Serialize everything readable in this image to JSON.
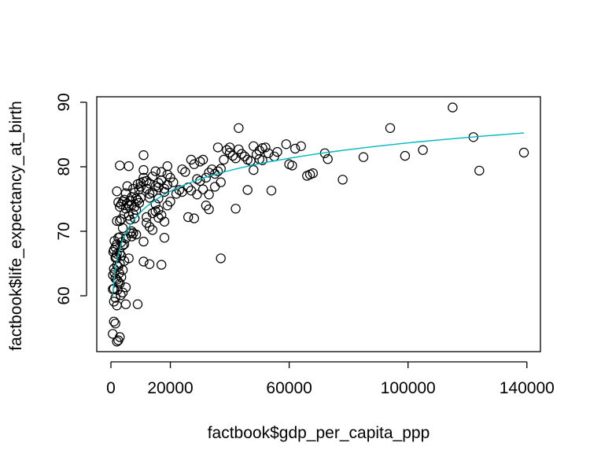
{
  "chart_data": {
    "type": "scatter",
    "title": "",
    "xlabel": "factbook$gdp_per_capita_ppp",
    "ylabel": "factbook$life_expectancy_at_birth",
    "xlim": [
      0,
      140000
    ],
    "ylim": [
      53,
      90
    ],
    "x_ticks": [
      0,
      20000,
      60000,
      100000,
      140000
    ],
    "x_tick_labels": [
      "0",
      "20000",
      "60000",
      "100000",
      "140000"
    ],
    "y_ticks": [
      60,
      70,
      80,
      90
    ],
    "y_tick_labels": [
      "60",
      "70",
      "80",
      "90"
    ],
    "grid": false,
    "legend": "none",
    "points_color": "#000000",
    "fit_color": "#00b7c3",
    "points": [
      [
        115000,
        89.2
      ],
      [
        94000,
        86.0
      ],
      [
        43000,
        86.0
      ],
      [
        122000,
        84.6
      ],
      [
        139000,
        82.2
      ],
      [
        105000,
        82.6
      ],
      [
        99000,
        81.7
      ],
      [
        85000,
        81.5
      ],
      [
        72000,
        82.1
      ],
      [
        73000,
        81.2
      ],
      [
        78000,
        78.0
      ],
      [
        124000,
        79.4
      ],
      [
        59000,
        83.5
      ],
      [
        62000,
        82.8
      ],
      [
        64000,
        83.2
      ],
      [
        60000,
        80.4
      ],
      [
        61000,
        80.2
      ],
      [
        66000,
        78.6
      ],
      [
        67000,
        78.8
      ],
      [
        68000,
        79.0
      ],
      [
        48000,
        83.2
      ],
      [
        50000,
        82.5
      ],
      [
        51000,
        82.9
      ],
      [
        52000,
        83.0
      ],
      [
        49000,
        81.9
      ],
      [
        50000,
        81.2
      ],
      [
        51000,
        81.0
      ],
      [
        53000,
        82.1
      ],
      [
        55000,
        81.6
      ],
      [
        56000,
        82.3
      ],
      [
        48000,
        79.5
      ],
      [
        54000,
        76.3
      ],
      [
        39000,
        82.6
      ],
      [
        40000,
        82.2
      ],
      [
        40000,
        83.0
      ],
      [
        41000,
        81.7
      ],
      [
        42000,
        81.3
      ],
      [
        43000,
        82.7
      ],
      [
        44000,
        82.0
      ],
      [
        45000,
        81.6
      ],
      [
        46000,
        81.1
      ],
      [
        47000,
        80.9
      ],
      [
        36000,
        83.0
      ],
      [
        38000,
        81.1
      ],
      [
        46000,
        76.4
      ],
      [
        42000,
        73.5
      ],
      [
        37000,
        65.8
      ],
      [
        30000,
        80.8
      ],
      [
        31000,
        81.1
      ],
      [
        32000,
        78.3
      ],
      [
        33000,
        79.1
      ],
      [
        34000,
        79.6
      ],
      [
        35000,
        78.9
      ],
      [
        36000,
        79.3
      ],
      [
        37000,
        79.7
      ],
      [
        37000,
        77.6
      ],
      [
        35000,
        76.9
      ],
      [
        33000,
        75.7
      ],
      [
        32000,
        74.0
      ],
      [
        33000,
        73.4
      ],
      [
        31000,
        76.5
      ],
      [
        28000,
        80.4
      ],
      [
        27000,
        81.1
      ],
      [
        29000,
        78.1
      ],
      [
        30000,
        77.8
      ],
      [
        29000,
        75.7
      ],
      [
        28000,
        72.0
      ],
      [
        27000,
        76.3
      ],
      [
        26000,
        76.8
      ],
      [
        25000,
        79.2
      ],
      [
        24000,
        79.6
      ],
      [
        26000,
        72.2
      ],
      [
        24000,
        76.1
      ],
      [
        23000,
        76.4
      ],
      [
        22000,
        75.8
      ],
      [
        21000,
        77.6
      ],
      [
        20000,
        78.3
      ],
      [
        19000,
        78.8
      ],
      [
        19000,
        77.2
      ],
      [
        18000,
        76.6
      ],
      [
        18000,
        76.1
      ],
      [
        17000,
        79.2
      ],
      [
        17000,
        77.9
      ],
      [
        16000,
        77.5
      ],
      [
        16000,
        76.8
      ],
      [
        16000,
        75.1
      ],
      [
        15000,
        79.3
      ],
      [
        15000,
        77.0
      ],
      [
        14000,
        78.5
      ],
      [
        14000,
        76.0
      ],
      [
        13000,
        77.4
      ],
      [
        13000,
        75.8
      ],
      [
        12000,
        77.8
      ],
      [
        12000,
        76.6
      ],
      [
        11000,
        79.5
      ],
      [
        11000,
        78.3
      ],
      [
        11000,
        77.7
      ],
      [
        19000,
        80.1
      ],
      [
        20000,
        74.6
      ],
      [
        19000,
        74.0
      ],
      [
        18000,
        71.5
      ],
      [
        18000,
        69.0
      ],
      [
        17000,
        72.5
      ],
      [
        17000,
        64.8
      ],
      [
        16000,
        73.3
      ],
      [
        16000,
        72.1
      ],
      [
        15000,
        74.2
      ],
      [
        15000,
        73.1
      ],
      [
        14000,
        72.8
      ],
      [
        14000,
        70.2
      ],
      [
        13000,
        75.2
      ],
      [
        13000,
        70.7
      ],
      [
        13000,
        64.9
      ],
      [
        12000,
        72.2
      ],
      [
        11000,
        81.8
      ],
      [
        12000,
        71.3
      ],
      [
        11000,
        68.4
      ],
      [
        11000,
        65.3
      ],
      [
        10000,
        77.5
      ],
      [
        10000,
        76.9
      ],
      [
        10000,
        75.2
      ],
      [
        9500,
        76.5
      ],
      [
        9500,
        74.4
      ],
      [
        9000,
        77.3
      ],
      [
        9000,
        74.8
      ],
      [
        8500,
        75.1
      ],
      [
        8500,
        73.3
      ],
      [
        8000,
        76.0
      ],
      [
        8000,
        73.8
      ],
      [
        8000,
        72.0
      ],
      [
        7500,
        76.6
      ],
      [
        7500,
        72.7
      ],
      [
        7000,
        75.3
      ],
      [
        7000,
        74.1
      ],
      [
        7000,
        70.0
      ],
      [
        7000,
        69.2
      ],
      [
        6500,
        74.7
      ],
      [
        6500,
        71.8
      ],
      [
        6500,
        69.7
      ],
      [
        6000,
        80.1
      ],
      [
        6000,
        74.0
      ],
      [
        6000,
        72.4
      ],
      [
        6000,
        65.8
      ],
      [
        5500,
        77.0
      ],
      [
        5500,
        74.3
      ],
      [
        5000,
        75.9
      ],
      [
        5000,
        73.5
      ],
      [
        5000,
        68.9
      ],
      [
        5000,
        61.3
      ],
      [
        5000,
        58.7
      ],
      [
        9000,
        58.7
      ],
      [
        7500,
        69.7
      ],
      [
        8500,
        69.5
      ],
      [
        4500,
        74.9
      ],
      [
        4500,
        72.7
      ],
      [
        4500,
        68.0
      ],
      [
        4500,
        65.4
      ],
      [
        4000,
        74.6
      ],
      [
        4000,
        70.5
      ],
      [
        4000,
        67.8
      ],
      [
        4000,
        64.0
      ],
      [
        4000,
        60.5
      ],
      [
        3500,
        74.2
      ],
      [
        3500,
        71.9
      ],
      [
        3500,
        68.3
      ],
      [
        3500,
        66.2
      ],
      [
        3500,
        62.9
      ],
      [
        3000,
        80.2
      ],
      [
        3000,
        73.8
      ],
      [
        3000,
        71.6
      ],
      [
        3000,
        69.1
      ],
      [
        3000,
        66.6
      ],
      [
        3000,
        65.0
      ],
      [
        3000,
        61.9
      ],
      [
        3000,
        53.6
      ],
      [
        2500,
        74.5
      ],
      [
        2500,
        69.0
      ],
      [
        2500,
        64.5
      ],
      [
        2500,
        62.2
      ],
      [
        2500,
        53.1
      ],
      [
        2000,
        76.2
      ],
      [
        2000,
        71.6
      ],
      [
        2000,
        68.0
      ],
      [
        2000,
        66.5
      ],
      [
        2000,
        64.7
      ],
      [
        2000,
        62.5
      ],
      [
        2000,
        58.5
      ],
      [
        2000,
        52.9
      ],
      [
        1500,
        67.5
      ],
      [
        1500,
        65.9
      ],
      [
        1500,
        62.7
      ],
      [
        1500,
        55.7
      ],
      [
        1500,
        59.7
      ],
      [
        1000,
        67.1
      ],
      [
        1000,
        64.2
      ],
      [
        1000,
        61.1
      ],
      [
        1000,
        56.0
      ],
      [
        1000,
        59.1
      ],
      [
        800,
        66.8
      ],
      [
        700,
        63.2
      ],
      [
        600,
        54.1
      ],
      [
        600,
        61.0
      ],
      [
        1200,
        68.5
      ],
      [
        1200,
        63.6
      ],
      [
        1800,
        66.0
      ],
      [
        2200,
        60.9
      ],
      [
        2800,
        63.5
      ],
      [
        3300,
        60.1
      ]
    ]
  }
}
